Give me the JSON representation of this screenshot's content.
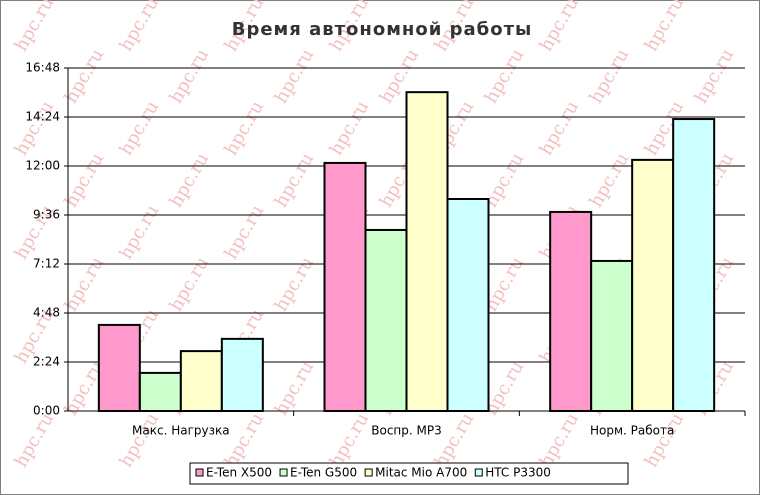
{
  "chart_data": {
    "type": "bar",
    "title": "Время автономной работы",
    "watermark": "hpc.ru",
    "categories": [
      "Макс. Нагрузка",
      "Воспр. MP3",
      "Норм. Работа"
    ],
    "series": [
      {
        "name": "E-Ten X500",
        "color": "#ff99cc",
        "values": [
          253,
          729,
          585
        ]
      },
      {
        "name": "E-Ten G500",
        "color": "#ccffcc",
        "values": [
          112,
          532,
          441
        ]
      },
      {
        "name": "Mitac Mio A700",
        "color": "#ffffcc",
        "values": [
          176,
          937,
          738
        ]
      },
      {
        "name": "HTC P3300",
        "color": "#ccffff",
        "values": [
          212,
          623,
          858
        ]
      }
    ],
    "ylim": [
      0,
      1008
    ],
    "yticks": [
      {
        "value": 0,
        "label": "0:00"
      },
      {
        "value": 144,
        "label": "2:24"
      },
      {
        "value": 288,
        "label": "4:48"
      },
      {
        "value": 432,
        "label": "7:12"
      },
      {
        "value": 576,
        "label": "9:36"
      },
      {
        "value": 720,
        "label": "12:00"
      },
      {
        "value": 864,
        "label": "14:24"
      },
      {
        "value": 1008,
        "label": "16:48"
      }
    ],
    "grid": true
  }
}
